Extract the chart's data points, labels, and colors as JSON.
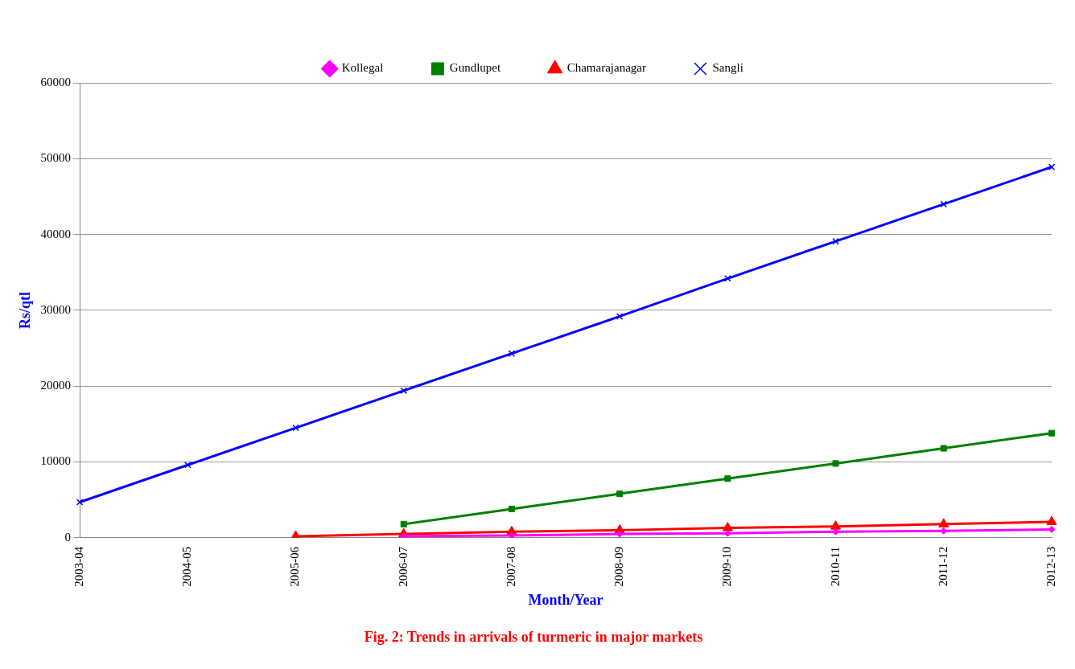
{
  "chart_data": {
    "type": "line",
    "title": "Fig. 2: Trends in arrivals of turmeric in major markets",
    "xlabel": "Month/Year",
    "ylabel": "Rs/qtl",
    "categories": [
      "2003-04",
      "2004-05",
      "2005-06",
      "2006-07",
      "2007-08",
      "2008-09",
      "2009-10",
      "2010-11",
      "2011-12",
      "2012-13"
    ],
    "series": [
      {
        "name": "Kollegal",
        "color": "#ff00ff",
        "marker": "diamond",
        "values": [
          null,
          null,
          null,
          200,
          300,
          500,
          600,
          800,
          900,
          1100
        ]
      },
      {
        "name": "Gundlupet",
        "color": "#008000",
        "marker": "square",
        "values": [
          null,
          null,
          null,
          1800,
          3800,
          5800,
          7800,
          9800,
          11800,
          13800
        ]
      },
      {
        "name": "Chamarajanagar",
        "color": "#ff0000",
        "marker": "triangle",
        "values": [
          null,
          null,
          200,
          500,
          800,
          1000,
          1300,
          1500,
          1800,
          2100
        ]
      },
      {
        "name": "Sangli",
        "color": "#0000ff",
        "marker": "cross",
        "values": [
          4700,
          9600,
          14500,
          19400,
          24300,
          29200,
          34200,
          39100,
          44000,
          48900
        ]
      }
    ],
    "ylim": [
      0,
      60000
    ],
    "yticks": [
      0,
      10000,
      20000,
      30000,
      40000,
      50000,
      60000
    ],
    "grid": "y",
    "legend": "top"
  }
}
